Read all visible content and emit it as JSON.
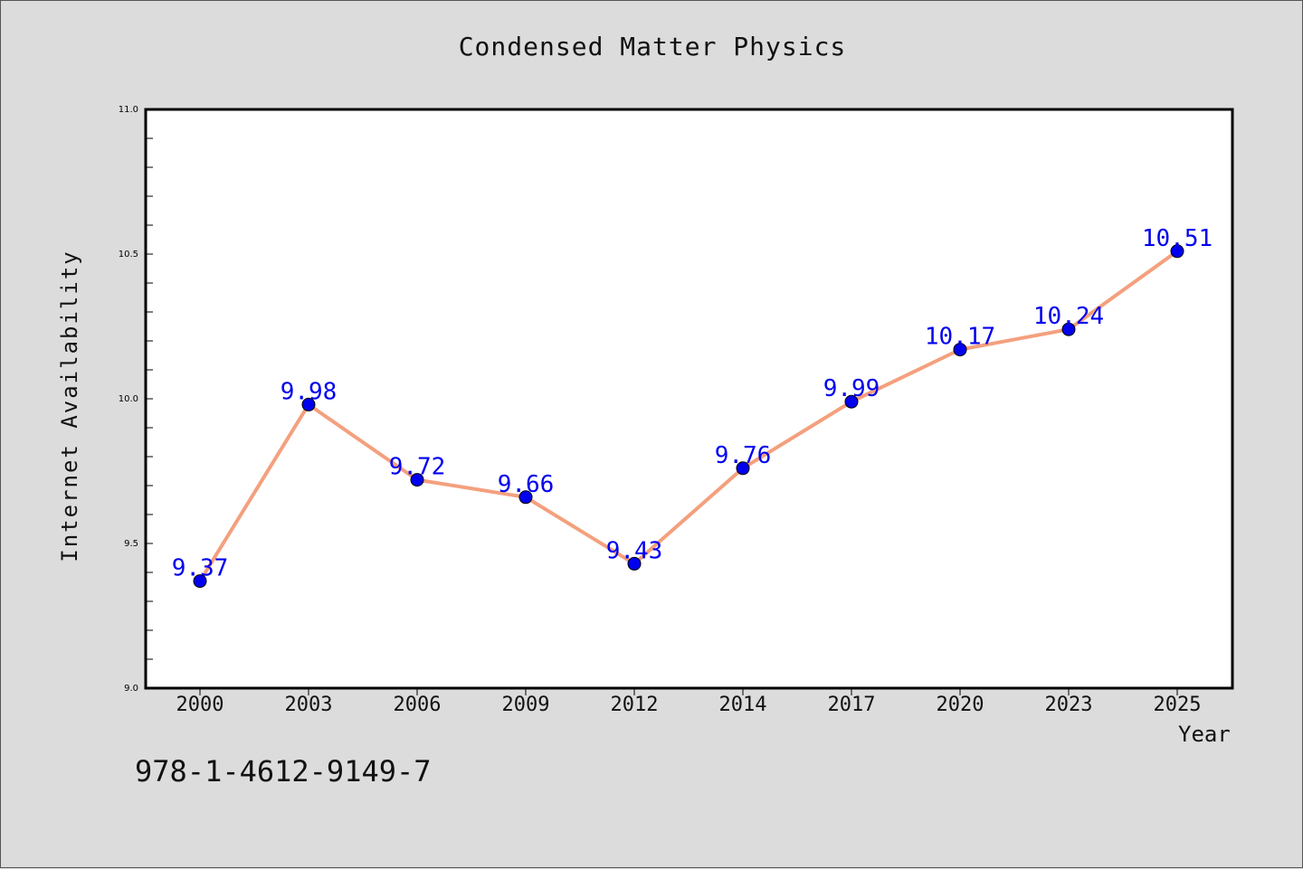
{
  "chart_data": {
    "type": "line",
    "title": "Condensed Matter Physics",
    "xlabel": "Year",
    "ylabel": "Internet Availability",
    "categories": [
      "2000",
      "2003",
      "2006",
      "2009",
      "2012",
      "2014",
      "2017",
      "2020",
      "2023",
      "2025"
    ],
    "series": [
      {
        "values": [
          9.37,
          9.98,
          9.72,
          9.66,
          9.43,
          9.76,
          9.99,
          10.17,
          10.24,
          10.51
        ],
        "labels": [
          "9.37",
          "9.98",
          "9.72",
          "9.66",
          "9.43",
          "9.76",
          "9.99",
          "10.17",
          "10.24",
          "10.51"
        ],
        "line_color": "#f4a07e",
        "marker_color": "#0000ee",
        "label_color": "#0000ee"
      }
    ],
    "ylim": [
      9.0,
      11.0
    ],
    "yticks": [
      "9.0",
      "9.5",
      "10.0",
      "10.5",
      "11.0"
    ],
    "grid": false,
    "legend": "none",
    "background": "#dcdcdc",
    "plot_background": "#ffffff"
  },
  "footer": {
    "code": "978-1-4612-9149-7"
  }
}
